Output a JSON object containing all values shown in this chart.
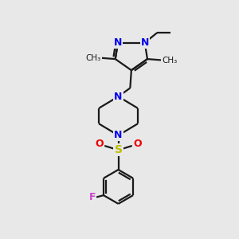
{
  "bg_color": "#e8e8e8",
  "bond_color": "#1a1a1a",
  "n_color": "#0000ee",
  "o_color": "#ee0000",
  "s_color": "#bbbb00",
  "f_color": "#cc44cc",
  "line_width": 1.6,
  "figsize": [
    3.0,
    3.0
  ],
  "dpi": 100,
  "xlim": [
    0,
    10
  ],
  "ylim": [
    0,
    10
  ]
}
